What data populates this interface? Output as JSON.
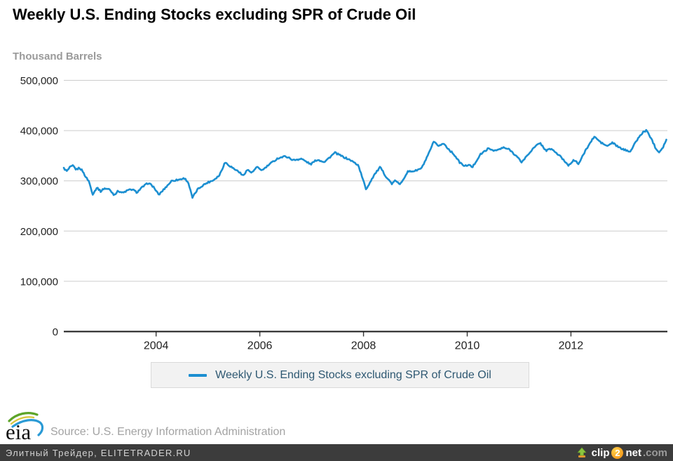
{
  "header": {
    "title": "Weekly U.S. Ending Stocks excluding SPR of Crude Oil",
    "unit_label": "Thousand Barrels"
  },
  "legend": {
    "label": "Weekly U.S. Ending Stocks excluding SPR of Crude Oil",
    "swatch_color": "#1c8fd1"
  },
  "footer": {
    "logo_text": "eia",
    "source": "Source: U.S. Energy Information Administration"
  },
  "watermark_bar": {
    "left_text": "Элитный Трейдер, ELITETRADER.RU",
    "clip2net": {
      "part1": "clip",
      "part2": "2",
      "part3": "net",
      "part4": ".com"
    }
  },
  "colors": {
    "line": "#1c8fd1",
    "grid": "#cccccc",
    "axis": "#1a1a1a",
    "tick_label": "#222222",
    "legend_text": "#2e5872"
  },
  "chart_data": {
    "type": "line",
    "title": "Weekly U.S. Ending Stocks excluding SPR of Crude Oil",
    "ylabel": "Thousand Barrels",
    "xlabel": "",
    "grid": "horizontal",
    "legend_position": "bottom",
    "x_ticks": [
      2004,
      2006,
      2008,
      2010,
      2012
    ],
    "y_ticks": [
      0,
      100000,
      200000,
      300000,
      400000,
      500000
    ],
    "xlim": [
      2002.22,
      2013.86
    ],
    "ylim": [
      0,
      500000
    ],
    "series": [
      {
        "name": "Weekly U.S. Ending Stocks excluding SPR of Crude Oil",
        "color": "#1c8fd1",
        "frequency": "weekly",
        "points": [
          [
            2002.22,
            325000
          ],
          [
            2002.28,
            319000
          ],
          [
            2002.34,
            327000
          ],
          [
            2002.4,
            330000
          ],
          [
            2002.46,
            322000
          ],
          [
            2002.52,
            326000
          ],
          [
            2002.58,
            320000
          ],
          [
            2002.64,
            308000
          ],
          [
            2002.7,
            300000
          ],
          [
            2002.78,
            273000
          ],
          [
            2002.86,
            287000
          ],
          [
            2002.93,
            279000
          ],
          [
            2003.0,
            285000
          ],
          [
            2003.1,
            283000
          ],
          [
            2003.19,
            272000
          ],
          [
            2003.27,
            280000
          ],
          [
            2003.36,
            276000
          ],
          [
            2003.45,
            281000
          ],
          [
            2003.54,
            283000
          ],
          [
            2003.63,
            277000
          ],
          [
            2003.73,
            287000
          ],
          [
            2003.85,
            296000
          ],
          [
            2003.95,
            288000
          ],
          [
            2004.05,
            272000
          ],
          [
            2004.15,
            283000
          ],
          [
            2004.3,
            300000
          ],
          [
            2004.42,
            302000
          ],
          [
            2004.55,
            305000
          ],
          [
            2004.62,
            297000
          ],
          [
            2004.7,
            266000
          ],
          [
            2004.8,
            283000
          ],
          [
            2004.9,
            291000
          ],
          [
            2005.0,
            297000
          ],
          [
            2005.1,
            301000
          ],
          [
            2005.22,
            311000
          ],
          [
            2005.33,
            337000
          ],
          [
            2005.42,
            330000
          ],
          [
            2005.5,
            324000
          ],
          [
            2005.6,
            318000
          ],
          [
            2005.67,
            310000
          ],
          [
            2005.76,
            322000
          ],
          [
            2005.85,
            316000
          ],
          [
            2005.94,
            327000
          ],
          [
            2006.05,
            321000
          ],
          [
            2006.2,
            334000
          ],
          [
            2006.35,
            345000
          ],
          [
            2006.5,
            349000
          ],
          [
            2006.65,
            341000
          ],
          [
            2006.8,
            344000
          ],
          [
            2006.98,
            333000
          ],
          [
            2007.1,
            342000
          ],
          [
            2007.25,
            338000
          ],
          [
            2007.45,
            356000
          ],
          [
            2007.6,
            348000
          ],
          [
            2007.75,
            341000
          ],
          [
            2007.9,
            331000
          ],
          [
            2008.05,
            283000
          ],
          [
            2008.2,
            311000
          ],
          [
            2008.32,
            327000
          ],
          [
            2008.45,
            306000
          ],
          [
            2008.55,
            294000
          ],
          [
            2008.62,
            301000
          ],
          [
            2008.7,
            292000
          ],
          [
            2008.85,
            318000
          ],
          [
            2009.0,
            320000
          ],
          [
            2009.12,
            325000
          ],
          [
            2009.25,
            352000
          ],
          [
            2009.35,
            377000
          ],
          [
            2009.45,
            370000
          ],
          [
            2009.55,
            374000
          ],
          [
            2009.65,
            362000
          ],
          [
            2009.75,
            352000
          ],
          [
            2009.85,
            337000
          ],
          [
            2009.95,
            329000
          ],
          [
            2010.02,
            332000
          ],
          [
            2010.1,
            327000
          ],
          [
            2010.25,
            352000
          ],
          [
            2010.4,
            364000
          ],
          [
            2010.55,
            360000
          ],
          [
            2010.7,
            366000
          ],
          [
            2010.82,
            362000
          ],
          [
            2010.95,
            349000
          ],
          [
            2011.05,
            337000
          ],
          [
            2011.25,
            362000
          ],
          [
            2011.4,
            376000
          ],
          [
            2011.52,
            360000
          ],
          [
            2011.62,
            364000
          ],
          [
            2011.8,
            348000
          ],
          [
            2011.95,
            331000
          ],
          [
            2012.05,
            341000
          ],
          [
            2012.15,
            334000
          ],
          [
            2012.3,
            364000
          ],
          [
            2012.45,
            388000
          ],
          [
            2012.58,
            376000
          ],
          [
            2012.7,
            369000
          ],
          [
            2012.8,
            376000
          ],
          [
            2012.93,
            366000
          ],
          [
            2013.05,
            361000
          ],
          [
            2013.15,
            359000
          ],
          [
            2013.27,
            381000
          ],
          [
            2013.4,
            398000
          ],
          [
            2013.46,
            400000
          ],
          [
            2013.55,
            384000
          ],
          [
            2013.63,
            366000
          ],
          [
            2013.7,
            357000
          ],
          [
            2013.78,
            368000
          ],
          [
            2013.84,
            382000
          ]
        ]
      }
    ]
  }
}
